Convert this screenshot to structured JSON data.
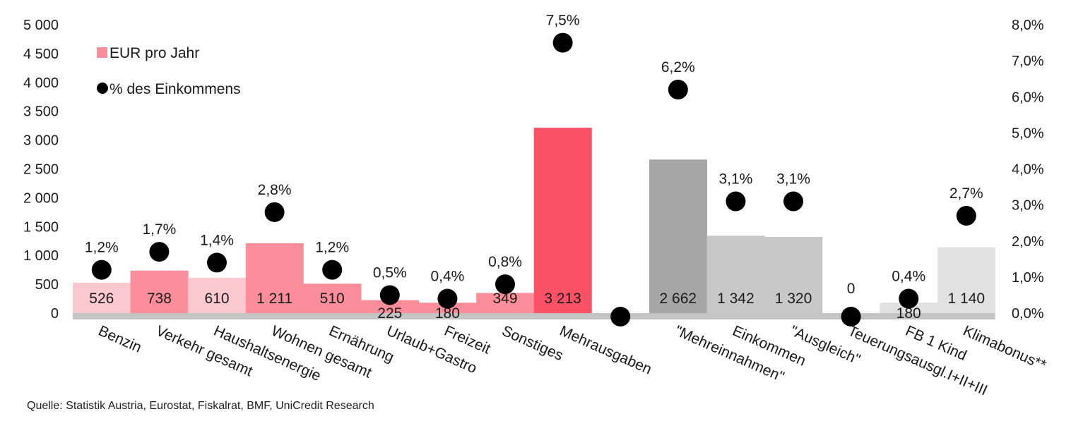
{
  "chart_data": {
    "type": "bar",
    "categories": [
      "Benzin",
      "Verkehr gesamt",
      "Haushaltsenergie",
      "Wohnen gesamt",
      "Ernährung",
      "Urlaub+Gastro",
      "Freizeit",
      "Sonstiges",
      "Mehrausgaben",
      "",
      "\"Mehreinnahmen\"",
      "Einkommen",
      "\"Ausgleich\"",
      "Teuerungsausgl.I+II+III",
      "FB 1 Kind",
      "Klimabonus**"
    ],
    "series": [
      {
        "name": "EUR pro Jahr",
        "axis": "left",
        "values": [
          526,
          738,
          610,
          1211,
          510,
          225,
          180,
          349,
          3213,
          null,
          2662,
          1342,
          1320,
          0,
          180,
          1140
        ],
        "labels": [
          "526",
          "738",
          "610",
          "1 211",
          "510",
          "225",
          "180",
          "349",
          "3 213",
          "",
          "2 662",
          "1 342",
          "1 320",
          "0",
          "180",
          "1 140"
        ],
        "colors": [
          "#f9c9cf",
          "#fb8e9a",
          "#f9c9cf",
          "#fb8e9a",
          "#fb8e9a",
          "#fb8e9a",
          "#fb8e9a",
          "#fb8e9a",
          "#fb5166",
          "",
          "#a6a6a6",
          "#c8c8c8",
          "#c8c8c8",
          "#c8c8c8",
          "#e1e1e1",
          "#e1e1e1"
        ]
      },
      {
        "name": "% des Einkommens",
        "axis": "right",
        "type": "scatter",
        "values": [
          1.2,
          1.7,
          1.4,
          2.8,
          1.2,
          0.5,
          0.4,
          0.8,
          7.5,
          0.0,
          6.2,
          3.1,
          3.1,
          0.0,
          0.4,
          2.7
        ],
        "labels": [
          "1,2%",
          "1,7%",
          "1,4%",
          "2,8%",
          "1,2%",
          "0,5%",
          "0,4%",
          "0,8%",
          "7,5%",
          "",
          "6,2%",
          "3,1%",
          "3,1%",
          "",
          "0,4%",
          "2,7%"
        ],
        "color": "#000000"
      }
    ],
    "left_axis": {
      "ylim": [
        0,
        5000
      ],
      "ticks": [
        0,
        500,
        1000,
        1500,
        2000,
        2500,
        3000,
        3500,
        4000,
        4500,
        5000
      ],
      "tick_labels": [
        "0",
        "500",
        "1 000",
        "1 500",
        "2 000",
        "2 500",
        "3 000",
        "3 500",
        "4 000",
        "4 500",
        "5 000"
      ]
    },
    "right_axis": {
      "ylim": [
        0,
        8
      ],
      "ticks": [
        0,
        1,
        2,
        3,
        4,
        5,
        6,
        7,
        8
      ],
      "tick_labels": [
        "0,0%",
        "1,0%",
        "2,0%",
        "3,0%",
        "4,0%",
        "5,0%",
        "6,0%",
        "7,0%",
        "8,0%"
      ]
    },
    "legend": {
      "position": "top-left",
      "items": [
        {
          "label": "EUR pro Jahr",
          "marker": "square",
          "color": "#fb8e9a"
        },
        {
          "label": "% des Einkommens",
          "marker": "circle",
          "color": "#000000"
        }
      ]
    },
    "baseline_color": "#c4c4c4",
    "grid": false,
    "source": "Quelle: Statistik Austria, Eurostat, Fiskalrat, BMF, UniCredit Research"
  }
}
